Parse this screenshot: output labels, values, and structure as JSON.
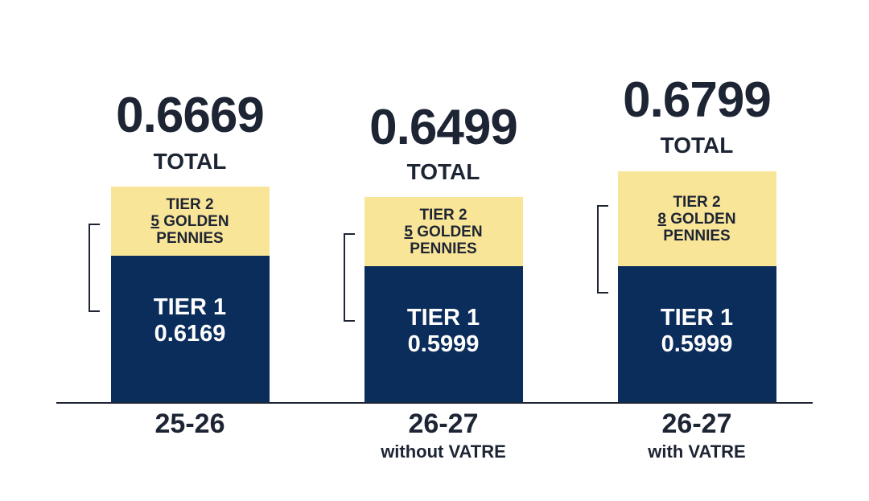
{
  "columns": [
    {
      "total": "0.6669",
      "total_label": "TOTAL",
      "tier2": {
        "label": "TIER 2",
        "count": "5",
        "unit": "GOLDEN PENNIES"
      },
      "tier1": {
        "label": "TIER 1",
        "value": "0.6169"
      },
      "category": "25-26"
    },
    {
      "total": "0.6499",
      "total_label": "TOTAL",
      "tier2": {
        "label": "TIER 2",
        "count": "5",
        "unit": "GOLDEN PENNIES"
      },
      "tier1": {
        "label": "TIER 1",
        "value": "0.5999"
      },
      "category": "26-27",
      "subtitle": "without VATRE"
    },
    {
      "total": "0.6799",
      "total_label": "TOTAL",
      "tier2": {
        "label": "TIER 2",
        "count": "8",
        "unit": "GOLDEN PENNIES"
      },
      "tier1": {
        "label": "TIER 1",
        "value": "0.5999"
      },
      "category": "26-27",
      "subtitle": "with VATRE"
    }
  ]
}
